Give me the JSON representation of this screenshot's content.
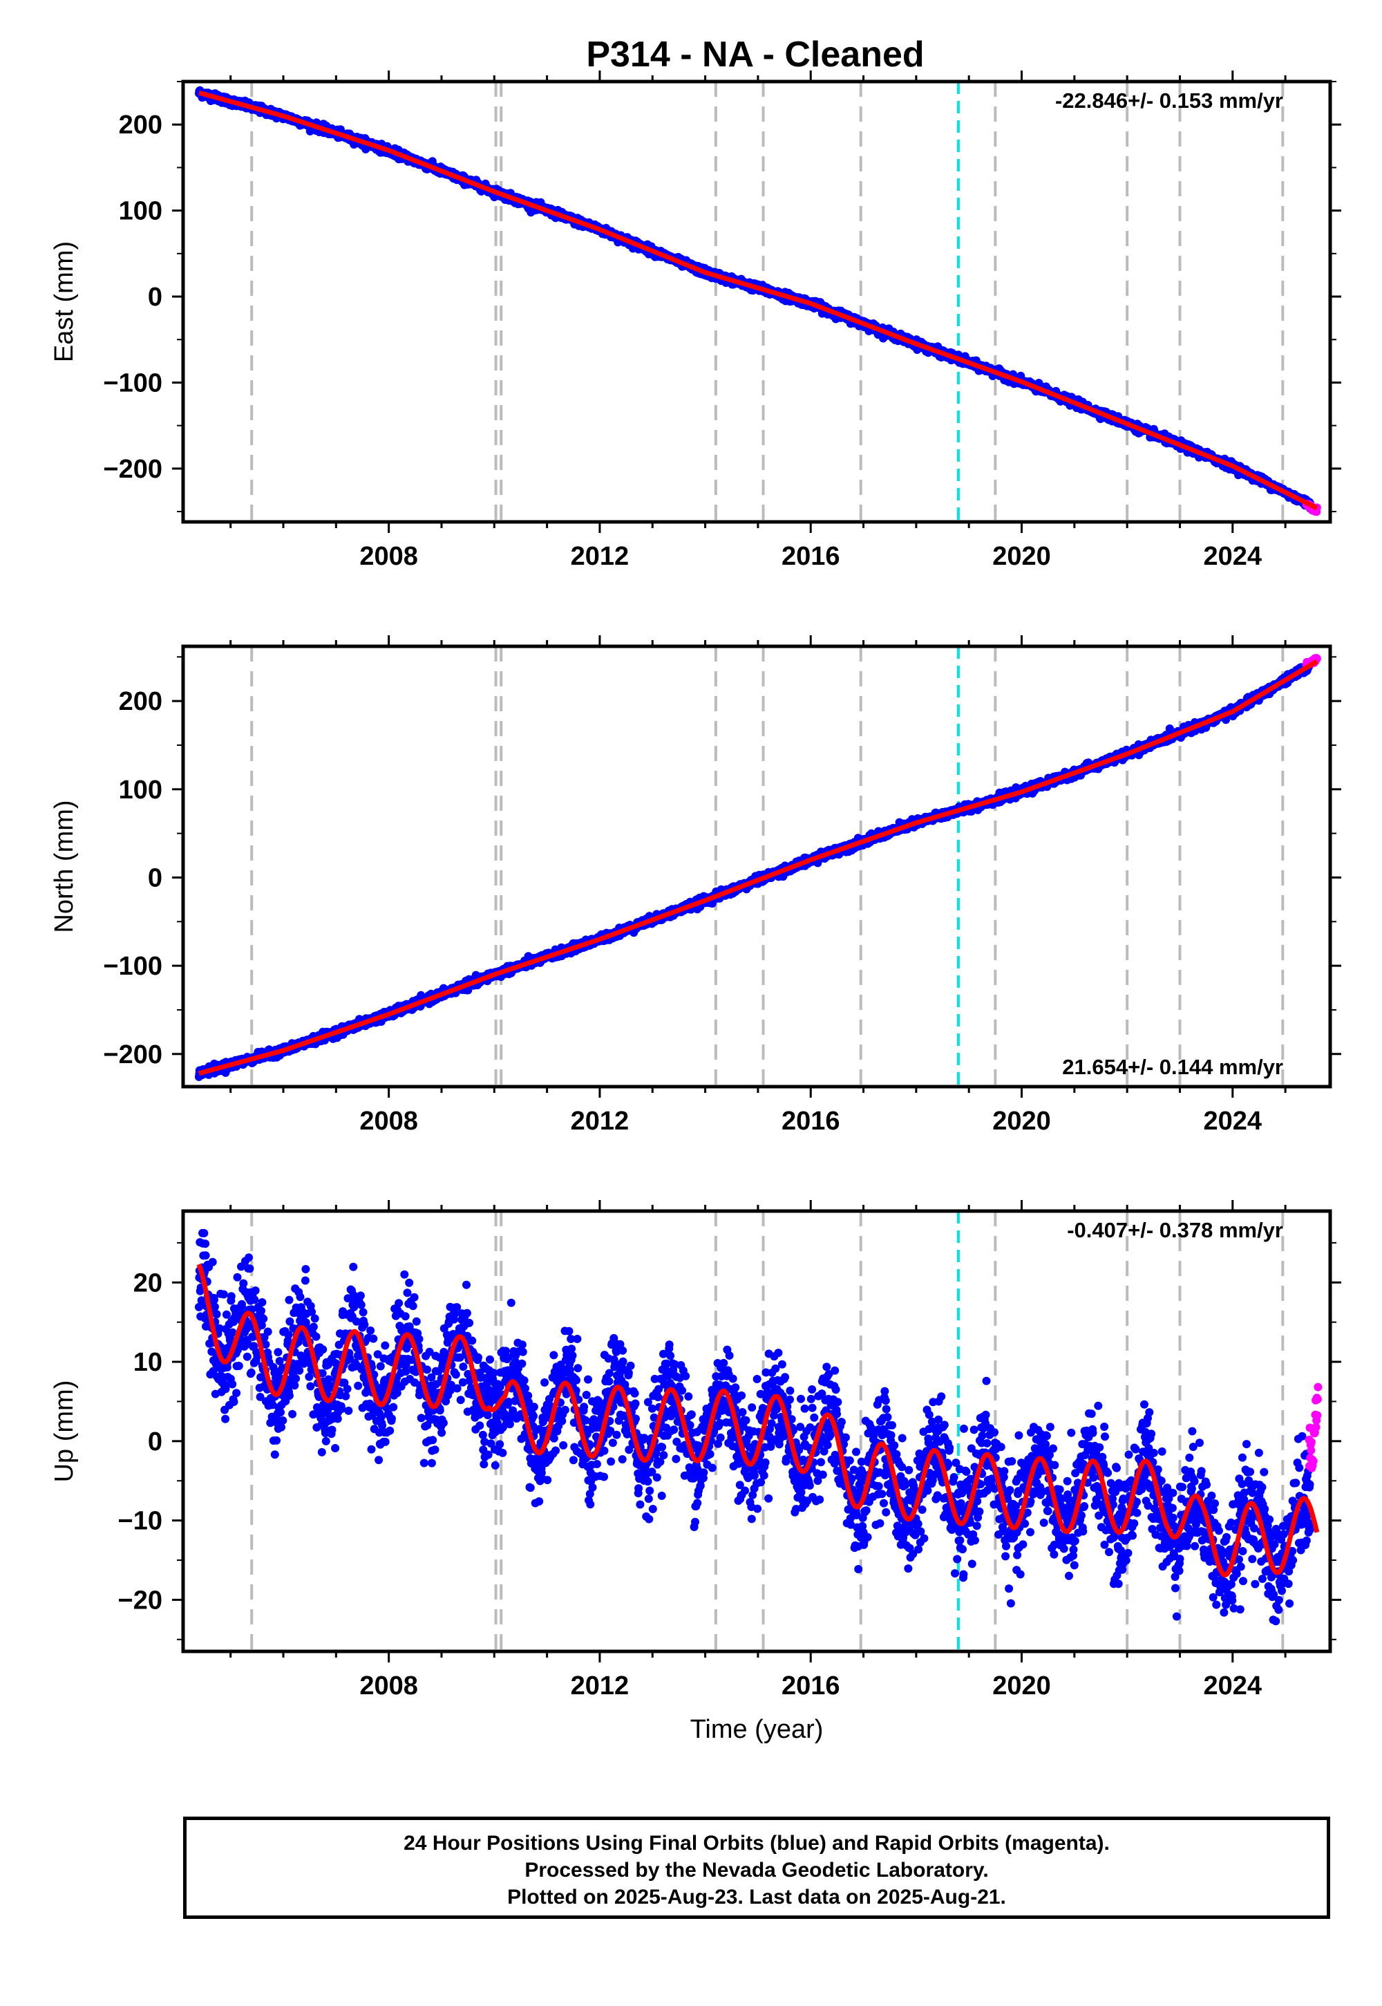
{
  "title": "P314  - NA - Cleaned",
  "colors": {
    "final_orbits": "#0000ff",
    "rapid_orbits": "#ff00ff",
    "model_fit": "#ff0000",
    "equipment_change": "#bbbbbb",
    "earthquake": "#00e5e5"
  },
  "footer": {
    "line1": "24 Hour Positions Using Final Orbits (blue) and Rapid Orbits (magenta).",
    "line2": "Processed by the Nevada Geodetic Laboratory.",
    "line3": "Plotted on 2025-Aug-23. Last data on 2025-Aug-21."
  },
  "chart_data": [
    {
      "type": "scatter",
      "panel": "east",
      "ylabel": "East (mm)",
      "xlabel": "",
      "xlim": [
        2004.1,
        2025.85
      ],
      "ylim": [
        -262,
        250
      ],
      "xticks": [
        2008,
        2012,
        2016,
        2020,
        2024
      ],
      "xtick_labels": [
        "2008",
        "2012",
        "2016",
        "2020",
        "2024"
      ],
      "yticks": [
        -200,
        -100,
        0,
        100,
        200
      ],
      "ytick_labels": [
        "−200",
        "−100",
        "0",
        "100",
        "200"
      ],
      "rate_label": "-22.846+/- 0.153 mm/yr",
      "rate_label_position": "top-right",
      "series": [
        {
          "role": "model",
          "x": [
            2004.4,
            2006.0,
            2008.0,
            2010.0,
            2012.0,
            2014.0,
            2016.0,
            2018.0,
            2020.0,
            2022.0,
            2024.0,
            2025.6
          ],
          "values": [
            237,
            210,
            170,
            122,
            78,
            28,
            -8,
            -55,
            -99,
            -148,
            -197,
            -246
          ]
        }
      ],
      "rapid_orbits": {
        "x": [
          2025.4,
          2025.6
        ],
        "values": [
          -242,
          -248
        ]
      },
      "scatter_noise_mm": 2.2,
      "equipment_change_years": [
        2005.4,
        2010.03,
        2010.13,
        2014.2,
        2015.1,
        2016.95,
        2019.5,
        2022.0,
        2023.0,
        2024.95
      ],
      "earthquake_years": [
        2018.8
      ]
    },
    {
      "type": "scatter",
      "panel": "north",
      "ylabel": "North (mm)",
      "xlabel": "",
      "xlim": [
        2004.1,
        2025.85
      ],
      "ylim": [
        -237,
        262
      ],
      "xticks": [
        2008,
        2012,
        2016,
        2020,
        2024
      ],
      "xtick_labels": [
        "2008",
        "2012",
        "2016",
        "2020",
        "2024"
      ],
      "yticks": [
        -200,
        -100,
        0,
        100,
        200
      ],
      "ytick_labels": [
        "−200",
        "−100",
        "0",
        "100",
        "200"
      ],
      "rate_label": "21.654+/- 0.144 mm/yr",
      "rate_label_position": "bottom-right",
      "series": [
        {
          "role": "model",
          "x": [
            2004.4,
            2006.0,
            2008.0,
            2010.0,
            2012.0,
            2014.0,
            2016.0,
            2018.0,
            2020.0,
            2022.0,
            2024.0,
            2025.6
          ],
          "values": [
            -222,
            -196,
            -155,
            -110,
            -70,
            -26,
            20,
            62,
            97,
            140,
            188,
            245
          ]
        }
      ],
      "rapid_orbits": {
        "x": [
          2025.4,
          2025.6
        ],
        "values": [
          242,
          248
        ]
      },
      "scatter_noise_mm": 2.2,
      "equipment_change_years": [
        2005.4,
        2010.03,
        2010.13,
        2014.2,
        2015.1,
        2016.95,
        2019.5,
        2022.0,
        2023.0,
        2024.95
      ],
      "earthquake_years": [
        2018.8
      ]
    },
    {
      "type": "scatter",
      "panel": "up",
      "ylabel": "Up (mm)",
      "xlabel": "Time (year)",
      "xlim": [
        2004.1,
        2025.85
      ],
      "ylim": [
        -26.5,
        29
      ],
      "xticks": [
        2008,
        2012,
        2016,
        2020,
        2024
      ],
      "xtick_labels": [
        "2008",
        "2012",
        "2016",
        "2020",
        "2024"
      ],
      "yticks": [
        -20,
        -10,
        0,
        10,
        20
      ],
      "ytick_labels": [
        "−20",
        "−10",
        "0",
        "10",
        "20"
      ],
      "rate_label": "-0.407+/- 0.378 mm/yr",
      "rate_label_position": "top-right",
      "series": [
        {
          "role": "model",
          "seasonal_amplitude_mm": 4.5,
          "x": [
            2004.4,
            2005.2,
            2006.0,
            2007.0,
            2008.0,
            2009.0,
            2009.9,
            2010.2,
            2011.0,
            2012.0,
            2013.0,
            2014.0,
            2015.0,
            2016.0,
            2017.0,
            2018.0,
            2019.0,
            2020.0,
            2021.0,
            2022.0,
            2022.8,
            2023.4,
            2024.0,
            2025.0,
            2025.6
          ],
          "values": [
            18,
            12,
            10,
            9.5,
            9,
            8.8,
            8.5,
            3,
            3,
            2.5,
            2,
            2,
            1.5,
            0.5,
            -4.5,
            -5.5,
            -6,
            -6.5,
            -7,
            -7,
            -7,
            -12,
            -12.5,
            -12,
            -11.5
          ]
        }
      ],
      "rapid_orbits": {
        "x": [
          2025.45,
          2025.55,
          2025.62
        ],
        "values": [
          -3,
          1,
          5
        ]
      },
      "scatter_noise_mm": 3.3,
      "equipment_change_years": [
        2005.4,
        2010.03,
        2010.13,
        2014.2,
        2015.1,
        2016.95,
        2019.5,
        2022.0,
        2023.0,
        2024.95
      ],
      "earthquake_years": [
        2018.8
      ]
    }
  ]
}
